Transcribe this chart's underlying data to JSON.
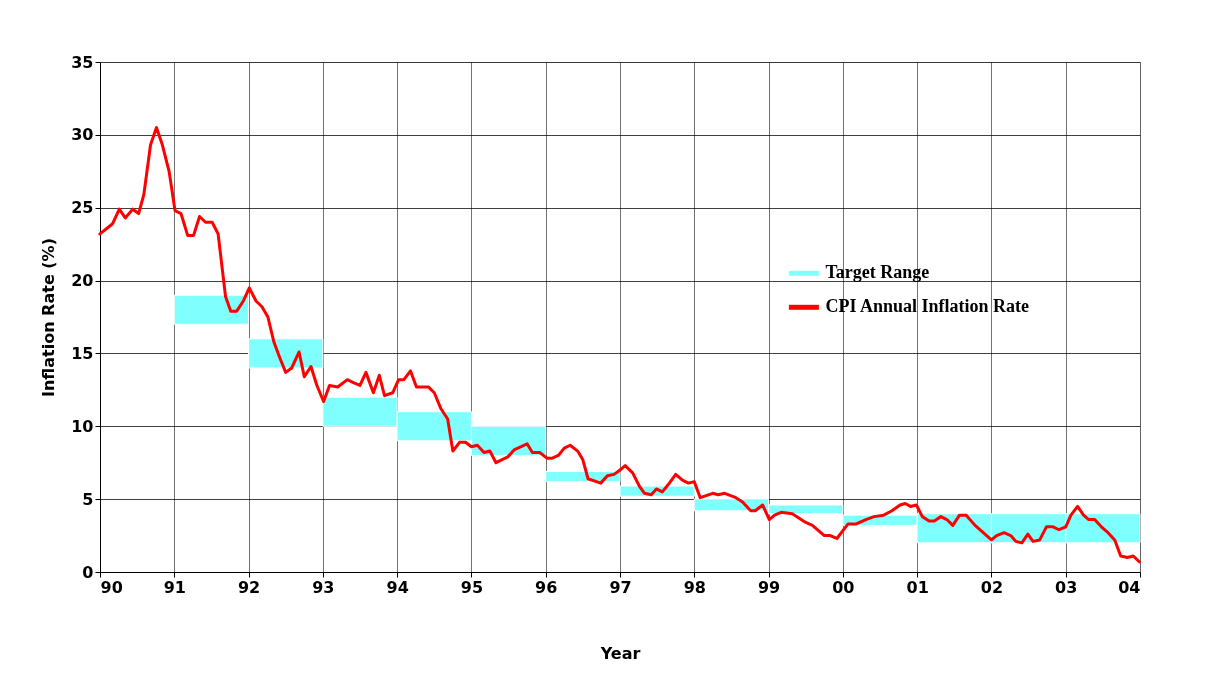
{
  "chart_data": {
    "type": "line",
    "xlabel": "Year",
    "ylabel": "Inflation Rate (%)",
    "xlim": [
      1990,
      2004
    ],
    "ylim": [
      0,
      35
    ],
    "xticks": [
      {
        "value": 1990,
        "label": "90"
      },
      {
        "value": 1991,
        "label": "91"
      },
      {
        "value": 1992,
        "label": "92"
      },
      {
        "value": 1993,
        "label": "93"
      },
      {
        "value": 1994,
        "label": "94"
      },
      {
        "value": 1995,
        "label": "95"
      },
      {
        "value": 1996,
        "label": "96"
      },
      {
        "value": 1997,
        "label": "97"
      },
      {
        "value": 1998,
        "label": "98"
      },
      {
        "value": 1999,
        "label": "99"
      },
      {
        "value": 2000,
        "label": "00"
      },
      {
        "value": 2001,
        "label": "01"
      },
      {
        "value": 2002,
        "label": "02"
      },
      {
        "value": 2003,
        "label": "03"
      },
      {
        "value": 2004,
        "label": "04"
      }
    ],
    "yticks": [
      0,
      5,
      10,
      15,
      20,
      25,
      30,
      35
    ],
    "grid": true,
    "legend": "right",
    "series": [
      {
        "name": "Target Range",
        "type": "bar",
        "color": "#80ffff",
        "x": [
          1991.5,
          1992.5,
          1993.5,
          1994.5,
          1995.5,
          1996.5,
          1997.5,
          1998.5,
          1999.5,
          2000.5,
          2001.5,
          2002.5,
          2003.5
        ],
        "base": [
          17,
          14,
          10,
          9,
          8,
          6.2,
          5.2,
          4.2,
          4.0,
          3.2,
          2,
          2,
          2
        ],
        "values": [
          2,
          2,
          2,
          2,
          2,
          0.7,
          0.7,
          0.8,
          0.6,
          0.7,
          2,
          2,
          2
        ]
      },
      {
        "name": "CPI Annual Inflation Rate",
        "color": "#ff0000",
        "x": [
          1990.0,
          1990.17,
          1990.26,
          1990.34,
          1990.44,
          1990.52,
          1990.59,
          1990.68,
          1990.76,
          1990.84,
          1990.93,
          1991.01,
          1991.09,
          1991.18,
          1991.26,
          1991.34,
          1991.42,
          1991.51,
          1991.59,
          1991.69,
          1991.76,
          1991.84,
          1991.93,
          1992.01,
          1992.1,
          1992.18,
          1992.26,
          1992.34,
          1992.42,
          1992.5,
          1992.58,
          1992.68,
          1992.75,
          1992.84,
          1992.92,
          1993.01,
          1993.09,
          1993.2,
          1993.33,
          1993.41,
          1993.5,
          1993.58,
          1993.68,
          1993.76,
          1993.83,
          1993.94,
          1994.02,
          1994.09,
          1994.18,
          1994.26,
          1994.42,
          1994.5,
          1994.59,
          1994.68,
          1994.75,
          1994.84,
          1994.92,
          1995.0,
          1995.08,
          1995.17,
          1995.25,
          1995.33,
          1995.49,
          1995.58,
          1995.67,
          1995.75,
          1995.82,
          1995.92,
          1996.02,
          1996.08,
          1996.17,
          1996.25,
          1996.33,
          1996.43,
          1996.5,
          1996.57,
          1996.74,
          1996.83,
          1996.92,
          1997.0,
          1997.07,
          1997.17,
          1997.26,
          1997.33,
          1997.42,
          1997.49,
          1997.57,
          1997.65,
          1997.75,
          1997.84,
          1997.92,
          1998.0,
          1998.08,
          1998.25,
          1998.32,
          1998.41,
          1998.56,
          1998.65,
          1998.76,
          1998.82,
          1998.92,
          1999.01,
          1999.08,
          1999.17,
          1999.32,
          1999.5,
          1999.59,
          1999.75,
          1999.83,
          1999.92,
          2000.07,
          2000.18,
          2000.31,
          2000.42,
          2000.55,
          2000.66,
          2000.77,
          2000.84,
          2000.91,
          2000.99,
          2001.07,
          2001.16,
          2001.23,
          2001.32,
          2001.4,
          2001.48,
          2001.57,
          2001.66,
          2001.78,
          2001.89,
          2002.0,
          2002.07,
          2002.17,
          2002.26,
          2002.33,
          2002.41,
          2002.49,
          2002.56,
          2002.65,
          2002.74,
          2002.83,
          2002.91,
          2003.0,
          2003.07,
          2003.16,
          2003.24,
          2003.31,
          2003.39,
          2003.48,
          2003.57,
          2003.66,
          2003.74,
          2003.83,
          2003.91,
          2003.99
        ],
        "values": [
          23.2,
          23.9,
          24.9,
          24.3,
          24.9,
          24.6,
          25.9,
          29.3,
          30.5,
          29.3,
          27.5,
          24.8,
          24.6,
          23.1,
          23.1,
          24.4,
          24.0,
          24.0,
          23.2,
          18.9,
          17.9,
          17.9,
          18.6,
          19.5,
          18.6,
          18.2,
          17.5,
          15.8,
          14.7,
          13.7,
          14.0,
          15.1,
          13.4,
          14.1,
          12.8,
          11.7,
          12.8,
          12.7,
          13.2,
          13.0,
          12.8,
          13.7,
          12.3,
          13.5,
          12.1,
          12.3,
          13.2,
          13.2,
          13.8,
          12.7,
          12.7,
          12.3,
          11.2,
          10.5,
          8.3,
          8.9,
          8.9,
          8.6,
          8.7,
          8.2,
          8.3,
          7.5,
          7.9,
          8.4,
          8.6,
          8.8,
          8.2,
          8.2,
          7.8,
          7.8,
          8.0,
          8.5,
          8.7,
          8.3,
          7.7,
          6.4,
          6.1,
          6.6,
          6.7,
          7.0,
          7.3,
          6.8,
          5.9,
          5.4,
          5.3,
          5.7,
          5.5,
          6.0,
          6.7,
          6.3,
          6.1,
          6.2,
          5.1,
          5.4,
          5.3,
          5.4,
          5.1,
          4.8,
          4.2,
          4.2,
          4.6,
          3.6,
          3.9,
          4.1,
          4.0,
          3.4,
          3.2,
          2.5,
          2.5,
          2.3,
          3.3,
          3.3,
          3.6,
          3.8,
          3.9,
          4.2,
          4.6,
          4.7,
          4.5,
          4.6,
          3.8,
          3.5,
          3.5,
          3.8,
          3.6,
          3.2,
          3.9,
          3.9,
          3.2,
          2.7,
          2.2,
          2.5,
          2.7,
          2.5,
          2.1,
          2.0,
          2.6,
          2.1,
          2.2,
          3.1,
          3.1,
          2.9,
          3.1,
          3.9,
          4.5,
          3.9,
          3.6,
          3.6,
          3.1,
          2.7,
          2.2,
          1.1,
          1.0,
          1.1,
          0.7
        ]
      }
    ]
  }
}
